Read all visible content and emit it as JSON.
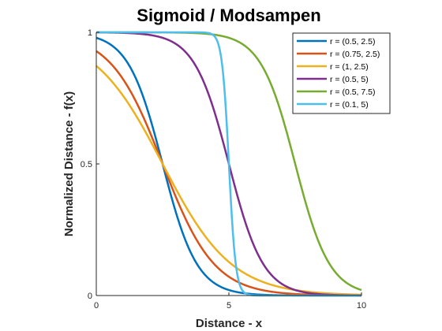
{
  "chart_data": {
    "type": "line",
    "title": "Sigmoid / Modsampen",
    "xlabel": "Distance - x",
    "ylabel": "Normalized Distance - f(x)",
    "xlim": [
      0,
      10
    ],
    "ylim": [
      0,
      1
    ],
    "x_ticks": [
      "0",
      "5",
      "10"
    ],
    "y_ticks": [
      "0",
      "0.5",
      "1"
    ],
    "grid": false,
    "legend_position": "top-right",
    "series": [
      {
        "name": "r = (0.5, 2.5)",
        "color": "#0072BD",
        "a": 0.5,
        "c": 2.5
      },
      {
        "name": "r = (0.75, 2.5)",
        "color": "#D95319",
        "a": 0.75,
        "c": 2.5
      },
      {
        "name": "r = (1, 2.5)",
        "color": "#EDB120",
        "a": 1,
        "c": 2.5
      },
      {
        "name": "r = (0.5, 5)",
        "color": "#7E2F8E",
        "a": 0.5,
        "c": 5
      },
      {
        "name": "r = (0.5, 7.5)",
        "color": "#77AC30",
        "a": 0.5,
        "c": 7.5
      },
      {
        "name": "r = (0.1, 5)",
        "color": "#4DBEEE",
        "a": 0.1,
        "c": 5
      }
    ]
  }
}
